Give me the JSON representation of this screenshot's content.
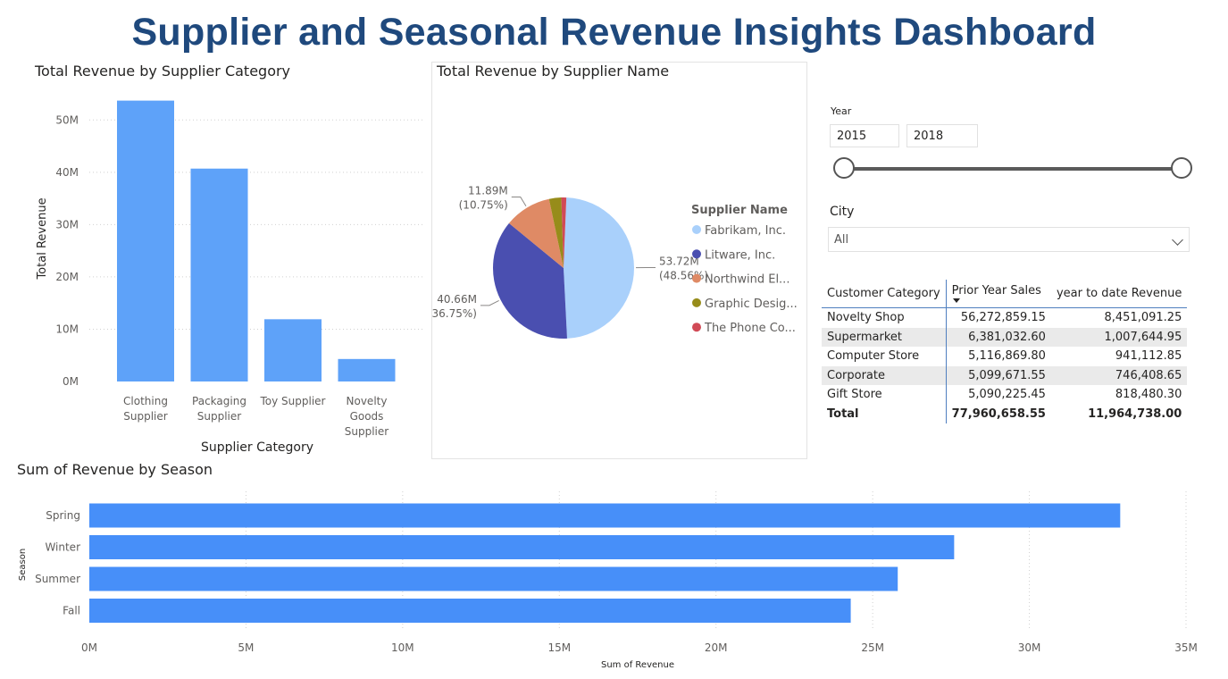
{
  "dashboard": {
    "title": "Supplier and Seasonal Revenue Insights Dashboard"
  },
  "bar_visual": {
    "title": "Total Revenue by Supplier Category"
  },
  "pie_visual": {
    "title": "Total Revenue by Supplier Name",
    "legend_title": "Supplier Name"
  },
  "season_visual": {
    "title": "Sum of Revenue by Season"
  },
  "slicer": {
    "year_label": "Year",
    "year_from": "2015",
    "year_to": "2018",
    "range_fraction_start": 0,
    "range_fraction_end": 1,
    "city_label": "City",
    "city_value": "All"
  },
  "matrix": {
    "headers": [
      "Customer Category",
      "Prior Year Sales",
      "year to date Revenue"
    ],
    "rows": [
      [
        "Novelty Shop",
        "56,272,859.15",
        "8,451,091.25"
      ],
      [
        "Supermarket",
        "6,381,032.60",
        "1,007,644.95"
      ],
      [
        "Computer Store",
        "5,116,869.80",
        "941,112.85"
      ],
      [
        "Corporate",
        "5,099,671.55",
        "746,408.65"
      ],
      [
        "Gift Store",
        "5,090,225.45",
        "818,480.30"
      ]
    ],
    "total": [
      "Total",
      "77,960,658.55",
      "11,964,738.00"
    ]
  },
  "colors": {
    "title": "#1f497d",
    "bar": "#5ea2f9",
    "season_bar": "#478ff9"
  },
  "chart_data": [
    {
      "type": "bar",
      "title": "Total Revenue by Supplier Category",
      "xlabel": "Supplier Category",
      "ylabel": "Total Revenue",
      "categories": [
        [
          "Clothing",
          "Supplier"
        ],
        [
          "Packaging",
          "Supplier"
        ],
        [
          "Toy Supplier"
        ],
        [
          "Novelty",
          "Goods",
          "Supplier"
        ]
      ],
      "values": [
        53.7,
        40.7,
        11.9,
        4.3
      ],
      "yticks": [
        0,
        10,
        20,
        30,
        40,
        50
      ],
      "ytick_labels": [
        "0M",
        "10M",
        "20M",
        "30M",
        "40M",
        "50M"
      ],
      "ylim": [
        0,
        55
      ],
      "grid": true
    },
    {
      "type": "pie",
      "title": "Total Revenue by Supplier Name",
      "legend_title": "Supplier Name",
      "slices": [
        {
          "name": "Fabrikam, Inc.",
          "legend": "Fabrikam, Inc.",
          "value": 48.56,
          "color": "#a9d0fb",
          "label": "53.72M",
          "pct": "(48.56%)"
        },
        {
          "name": "Litware, Inc.",
          "legend": "Litware, Inc.",
          "value": 36.75,
          "color": "#4a4fb0",
          "label": "40.66M",
          "pct": "(36.75%)"
        },
        {
          "name": "Northwind Electric Cars",
          "legend": "Northwind El...",
          "value": 10.75,
          "color": "#df8a65",
          "label": "11.89M",
          "pct": "(10.75%)"
        },
        {
          "name": "Graphic Design Institute",
          "legend": "Graphic Desig...",
          "value": 2.8,
          "color": "#978c1a",
          "label": "",
          "pct": ""
        },
        {
          "name": "The Phone Company",
          "legend": "The Phone Co...",
          "value": 1.14,
          "color": "#d14a56",
          "label": "",
          "pct": ""
        }
      ],
      "legend_position": "right"
    },
    {
      "type": "bar",
      "orientation": "horizontal",
      "title": "Sum of Revenue by Season",
      "xlabel": "Sum of Revenue",
      "ylabel": "Season",
      "categories": [
        "Spring",
        "Winter",
        "Summer",
        "Fall"
      ],
      "values": [
        32.9,
        27.6,
        25.8,
        24.3
      ],
      "xticks": [
        0,
        5,
        10,
        15,
        20,
        25,
        30,
        35
      ],
      "xtick_labels": [
        "0M",
        "5M",
        "10M",
        "15M",
        "20M",
        "25M",
        "30M",
        "35M"
      ],
      "xlim": [
        0,
        35
      ],
      "grid": true
    }
  ]
}
